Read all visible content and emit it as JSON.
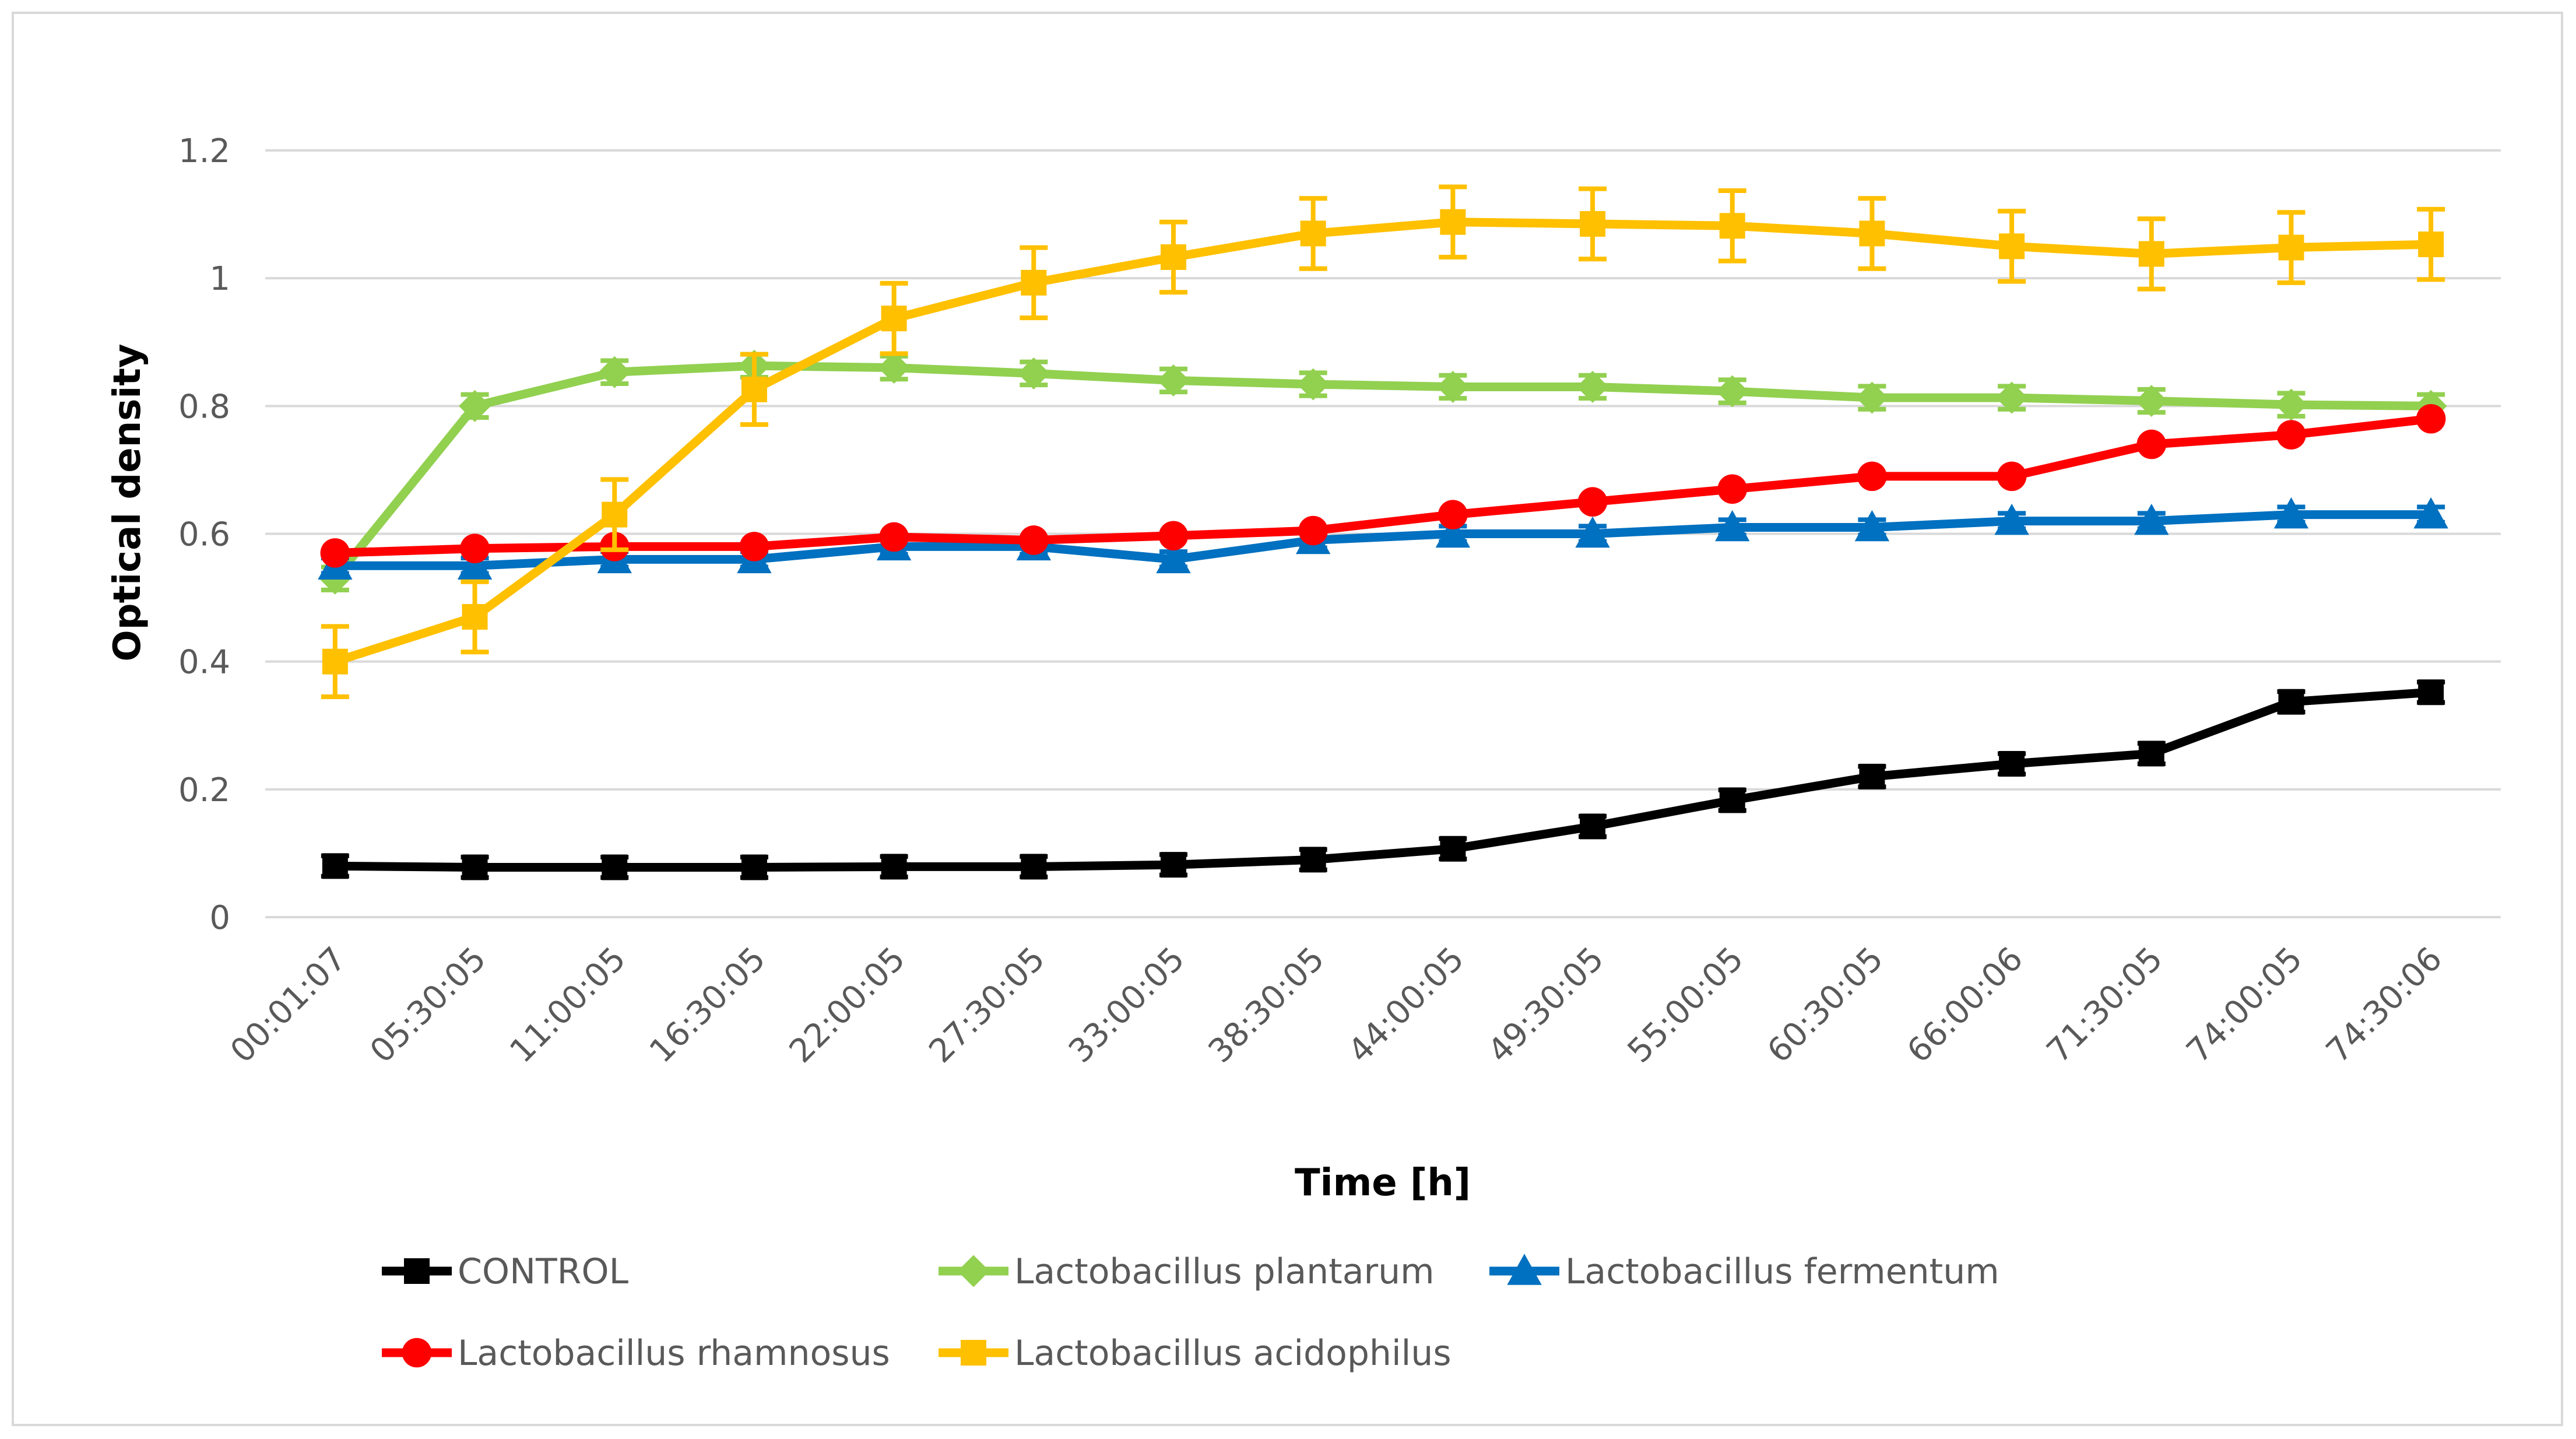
{
  "chart_data": {
    "type": "line",
    "title": "",
    "xlabel": "Time [h]",
    "ylabel": "Optical density",
    "ylim": [
      0,
      1.2
    ],
    "yticks": [
      0,
      0.2,
      0.4,
      0.6,
      0.8,
      1,
      1.2
    ],
    "ytick_labels": [
      "0",
      "0.2",
      "0.4",
      "0.6",
      "0.8",
      "1",
      "1.2"
    ],
    "grid": "horizontal",
    "legend_position": "bottom",
    "categories": [
      "00:01:07",
      "05:30:05",
      "11:00:05",
      "16:30:05",
      "22:00:05",
      "27:30:05",
      "33:00:05",
      "38:30:05",
      "44:00:05",
      "49:30:05",
      "55:00:05",
      "60:30:05",
      "66:00:06",
      "71:30:05",
      "74:00:05",
      "74:30:06"
    ],
    "series": [
      {
        "name": "CONTROL",
        "color": "#000000",
        "marker": "square",
        "values": [
          0.08,
          0.078,
          0.078,
          0.078,
          0.079,
          0.079,
          0.082,
          0.09,
          0.107,
          0.142,
          0.183,
          0.22,
          0.24,
          0.256,
          0.337,
          0.352
        ],
        "error": [
          0.016,
          0.016,
          0.016,
          0.016,
          0.016,
          0.016,
          0.016,
          0.016,
          0.016,
          0.016,
          0.016,
          0.016,
          0.016,
          0.016,
          0.016,
          0.016
        ]
      },
      {
        "name": "Lactobacillus plantarum",
        "color": "#92d050",
        "marker": "diamond",
        "values": [
          0.53,
          0.8,
          0.853,
          0.863,
          0.86,
          0.851,
          0.84,
          0.834,
          0.83,
          0.83,
          0.823,
          0.813,
          0.813,
          0.808,
          0.802,
          0.8
        ],
        "error": [
          0.018,
          0.018,
          0.018,
          0.018,
          0.018,
          0.018,
          0.018,
          0.018,
          0.018,
          0.018,
          0.018,
          0.018,
          0.018,
          0.018,
          0.018,
          0.018
        ]
      },
      {
        "name": "Lactobacillus fermentum",
        "color": "#0070c0",
        "marker": "triangle",
        "values": [
          0.55,
          0.55,
          0.56,
          0.56,
          0.58,
          0.58,
          0.56,
          0.59,
          0.6,
          0.6,
          0.61,
          0.61,
          0.62,
          0.62,
          0.63,
          0.63
        ],
        "error": [
          0.012,
          0.012,
          0.012,
          0.012,
          0.012,
          0.012,
          0.012,
          0.012,
          0.012,
          0.012,
          0.012,
          0.012,
          0.012,
          0.012,
          0.012,
          0.012
        ]
      },
      {
        "name": "Lactobacillus rhamnosus",
        "color": "#ff0000",
        "marker": "circle",
        "values": [
          0.57,
          0.577,
          0.58,
          0.58,
          0.595,
          0.59,
          0.597,
          0.605,
          0.63,
          0.65,
          0.67,
          0.69,
          0.69,
          0.74,
          0.755,
          0.78
        ],
        "error": [
          0,
          0,
          0,
          0,
          0,
          0,
          0,
          0,
          0,
          0,
          0,
          0,
          0,
          0,
          0,
          0
        ]
      },
      {
        "name": "Lactobacillus acidophilus",
        "color": "#ffc000",
        "marker": "square",
        "values": [
          0.4,
          0.47,
          0.63,
          0.826,
          0.937,
          0.993,
          1.033,
          1.07,
          1.088,
          1.085,
          1.082,
          1.07,
          1.05,
          1.038,
          1.048,
          1.053
        ],
        "error": [
          0.055,
          0.055,
          0.055,
          0.055,
          0.055,
          0.055,
          0.055,
          0.055,
          0.055,
          0.055,
          0.055,
          0.055,
          0.055,
          0.055,
          0.055,
          0.055
        ]
      }
    ]
  }
}
